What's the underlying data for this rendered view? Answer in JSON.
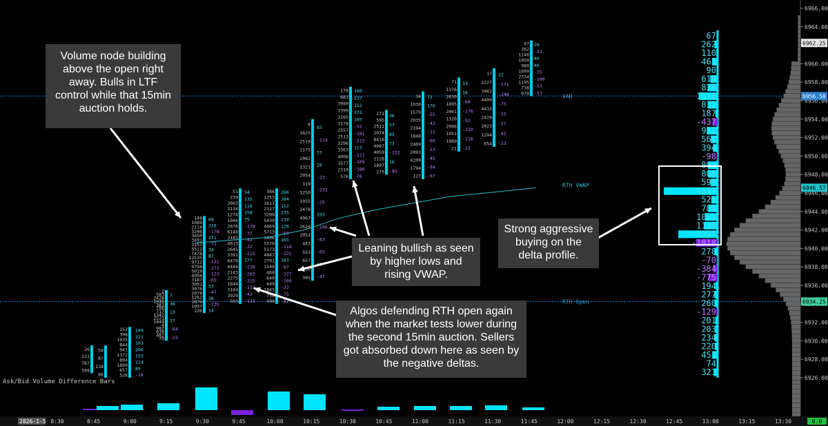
{
  "chart_data": {
    "type": "footprint",
    "instrument_date": "2026-1-5",
    "y_range": [
      6922,
      6966
    ],
    "y_ticks": [
      6926,
      6928,
      6930,
      6932,
      6934,
      6936,
      6938,
      6940,
      6942,
      6944,
      6946,
      6948,
      6950,
      6952,
      6954,
      6956,
      6958,
      6960,
      6962,
      6964,
      6966
    ],
    "x_ticks": [
      "8:30",
      "8:45",
      "9:00",
      "9:15",
      "9:30",
      "9:45",
      "10:00",
      "10:15",
      "10:30",
      "10:45",
      "11:00",
      "11:15",
      "11:30",
      "11:45",
      "12:00",
      "12:15",
      "12:30",
      "12:45",
      "13:00",
      "13:15",
      "13:30"
    ],
    "levels": {
      "vah": {
        "label": "VAH",
        "price": 6956.5,
        "tag": "6956.50"
      },
      "rth_vwap": {
        "label": "RTH VWAP",
        "price": 6946.57,
        "tag": "6946.57"
      },
      "rth_open": {
        "label": "RTH Open",
        "price": 6934.25,
        "tag": "6934.25"
      },
      "last": {
        "price": 6962.25,
        "tag": "6962.25"
      }
    },
    "vwap_points": [
      [
        9.5,
        6940.6
      ],
      [
        9.75,
        6940.9
      ],
      [
        10.0,
        6941.2
      ],
      [
        10.25,
        6942.0
      ],
      [
        10.5,
        6943.3
      ],
      [
        10.75,
        6944.2
      ],
      [
        11.0,
        6944.9
      ],
      [
        11.25,
        6945.6
      ],
      [
        11.5,
        6946.0
      ],
      [
        11.75,
        6946.4
      ],
      [
        11.85,
        6946.57
      ]
    ],
    "bars": [
      {
        "t": "8:30",
        "low": 6926.5,
        "high": 6929.5,
        "cells": [
          "26",
          "221",
          "787",
          "508"
        ]
      },
      {
        "t": "8:45",
        "low": 6926.0,
        "high": 6929.5,
        "cells": [
          "50",
          "87",
          "138",
          "86"
        ]
      },
      {
        "t": "9:00",
        "low": 6926.0,
        "high": 6931.5,
        "cells": [
          "152",
          "398",
          "1035",
          "844",
          "941",
          "1372",
          "894",
          "1890",
          "657",
          "528"
        ]
      },
      {
        "t": "9:00b",
        "low": 6926.0,
        "high": 6931.5,
        "cells": [
          "109",
          "221",
          "193",
          "206",
          "153",
          "114",
          "89",
          "-18"
        ]
      },
      {
        "t": "9:15",
        "low": 6930.0,
        "high": 6935.5,
        "cells": [
          "2",
          "583",
          "2428",
          "1046",
          "381",
          "796",
          "717",
          "1342",
          "2221",
          "1049",
          "4",
          "982",
          "630",
          "482",
          "79"
        ]
      },
      {
        "t": "9:15b",
        "low": 6930.0,
        "high": 6935.5,
        "cells": [
          "7",
          "36",
          "13",
          "27",
          "-84",
          "-23"
        ]
      },
      {
        "t": "9:30",
        "low": 6933.0,
        "high": 6943.5,
        "cells": [
          "148",
          "1089",
          "2114",
          "3246",
          "3650",
          "3491",
          "3153",
          "5512",
          "7478",
          "12535",
          "9712",
          "9798",
          "5019",
          "4994",
          "3187",
          "3091",
          "3076",
          "2078",
          "1262",
          "1876",
          "1097",
          "226"
        ]
      },
      {
        "t": "9:30b",
        "low": 6933.0,
        "high": 6943.5,
        "cells": [
          "68",
          "218",
          "-178",
          "271",
          "-72",
          "34",
          "82",
          "-131",
          "-272",
          "-123",
          "-65",
          "53",
          "-47",
          "36",
          "-235",
          "14"
        ]
      },
      {
        "t": "9:45",
        "low": 6934.0,
        "high": 6946.5,
        "cells": [
          "51",
          "239",
          "2003",
          "3134",
          "1274",
          "1046",
          "2076",
          "6148",
          "2185",
          "4013",
          "2645",
          "3391",
          "6470",
          "4446",
          "2143",
          "2275",
          "1844",
          "3104",
          "3929",
          "593"
        ]
      },
      {
        "t": "9:45b",
        "low": 6934.0,
        "high": 6946.5,
        "cells": [
          "54",
          "135",
          "116",
          "158",
          "75",
          "-178",
          "-37",
          "-42",
          "-32",
          "-215",
          "177",
          "-220",
          "-265",
          "-215",
          "-132",
          "-42",
          "-131"
        ]
      },
      {
        "t": "10:00",
        "low": 6934.0,
        "high": 6946.5,
        "cells": [
          "386",
          "1253",
          "1611",
          "2117",
          "3200",
          "5039",
          "4469",
          "5713",
          "1896",
          "5570",
          "5173",
          "4087",
          "2791",
          "3140",
          "468",
          "649",
          "649",
          "1843",
          "752",
          "408"
        ]
      },
      {
        "t": "10:00b",
        "low": 6934.0,
        "high": 6946.5,
        "cells": [
          "266",
          "284",
          "112",
          "235",
          "134",
          "128",
          "-68",
          "165",
          "-114",
          "-221",
          "163",
          "-87",
          "-227",
          "-166",
          "-32",
          "-75",
          "-82"
        ]
      },
      {
        "t": "10:15",
        "low": 6936.5,
        "high": 6954.0,
        "cells": [
          "8",
          "1625",
          "2519",
          "1175",
          "2082",
          "1321",
          "2054",
          "319",
          "1250",
          "1055",
          "2478",
          "4967",
          "2620",
          "2952",
          "443",
          "553",
          "657",
          "730",
          "305"
        ]
      },
      {
        "t": "10:15b",
        "low": 6936.5,
        "high": 6954.0,
        "cells": [
          "83",
          "-114",
          "37",
          "28",
          "-23",
          "-232",
          "-25",
          "193",
          "-166",
          "-83",
          "-63",
          "18",
          "-47"
        ]
      },
      {
        "t": "10:30",
        "low": 6947.5,
        "high": 6957.5,
        "cells": [
          "176",
          "681",
          "3989",
          "3399",
          "3165",
          "3178",
          "2557",
          "2513",
          "3296",
          "3363",
          "4006",
          "3577",
          "2319",
          "576"
        ]
      },
      {
        "t": "10:30b",
        "low": 6947.5,
        "high": 6957.5,
        "cells": [
          "100",
          "237",
          "152",
          "231",
          "105",
          "-32",
          "-181",
          "-213",
          "117",
          "-121",
          "-109",
          "-186",
          "-76"
        ]
      },
      {
        "t": "10:45",
        "low": 6948.0,
        "high": 6955.0,
        "cells": [
          "271",
          "595",
          "2511",
          "2074",
          "8416",
          "4087",
          "4059",
          "2128",
          "1897",
          "275"
        ]
      },
      {
        "t": "10:45b",
        "low": 6948.0,
        "high": 6955.0,
        "cells": [
          "36",
          "57",
          "85",
          "73",
          "-152",
          "16",
          "-85"
        ]
      },
      {
        "t": "11:00",
        "low": 6947.5,
        "high": 6957.0,
        "cells": [
          "36",
          "1030",
          "1579",
          "2035",
          "2194",
          "1848",
          "2469",
          "2093",
          "4209",
          "1794",
          "127"
        ]
      },
      {
        "t": "11:00b",
        "low": 6947.5,
        "high": 6957.0,
        "cells": [
          "71",
          "176",
          "-55",
          "-43",
          "-11",
          "-60",
          "-23",
          "-45",
          "-94",
          "-97"
        ]
      },
      {
        "t": "11:15",
        "low": 6950.5,
        "high": 6958.5,
        "cells": [
          "71",
          "1376",
          "2630",
          "1895",
          "2461",
          "1320",
          "2906",
          "1951",
          "1980",
          "21"
        ]
      },
      {
        "t": "11:15b",
        "low": 6950.5,
        "high": 6958.5,
        "cells": [
          "33",
          "18",
          "-60",
          "-176",
          "-92",
          "-220",
          "-118",
          "-23"
        ]
      },
      {
        "t": "11:30",
        "low": 6951.0,
        "high": 6959.5,
        "cells": [
          "17",
          "2227",
          "3982",
          "4409",
          "4415",
          "2428",
          "2023",
          "1294",
          "654"
        ]
      },
      {
        "t": "11:30b",
        "low": 6951.0,
        "high": 6959.5,
        "cells": [
          "12",
          "-171",
          "-246",
          "-75",
          "-15",
          "-27",
          "-42",
          "-23"
        ]
      },
      {
        "t": "11:45",
        "low": 6956.5,
        "high": 6962.5,
        "cells": [
          "87",
          "262",
          "1148",
          "1050",
          "980",
          "1699",
          "2334",
          "1195",
          "738",
          "678"
        ]
      },
      {
        "t": "11:45b",
        "low": 6956.5,
        "high": 6962.5,
        "cells": [
          "26",
          "-32",
          "40",
          "46",
          "-75",
          "-100",
          "-53",
          "-53"
        ]
      }
    ],
    "delta_profile": [
      {
        "price": 6964.5,
        "v": "67"
      },
      {
        "price": 6963.0,
        "v": "262"
      },
      {
        "price": 6961.5,
        "v": "110"
      },
      {
        "price": 6960.0,
        "v": "463"
      },
      {
        "price": 6958.5,
        "v": "90"
      },
      {
        "price": 6957.0,
        "v": "618"
      },
      {
        "price": 6955.5,
        "v": "836"
      },
      {
        "price": 6954.0,
        "v": "1578"
      },
      {
        "price": 6952.5,
        "v": "832"
      },
      {
        "price": 6951.0,
        "v": "187"
      },
      {
        "price": 6949.5,
        "v": "-437"
      },
      {
        "price": 6948.0,
        "v": "912"
      },
      {
        "price": 6946.5,
        "v": "568"
      },
      {
        "price": 6945.0,
        "v": "394"
      },
      {
        "price": 6943.5,
        "v": "-98"
      },
      {
        "price": 6942.0,
        "v": "802"
      },
      {
        "price": 6940.5,
        "v": "805"
      },
      {
        "price": 6939.0,
        "v": "599"
      },
      {
        "price": 6937.5,
        "v": "4517"
      },
      {
        "price": 6936.0,
        "v": "525"
      },
      {
        "price": 6934.5,
        "v": "783"
      },
      {
        "price": 6933.0,
        "v": "1061"
      },
      {
        "price": 6931.5,
        "v": "1139"
      },
      {
        "price": 6930.0,
        "v": "3297"
      },
      {
        "price": 6928.5,
        "v": "-1818"
      },
      {
        "price": 6927.0,
        "v": "278"
      },
      {
        "price": 6925.5,
        "v": "-70"
      },
      {
        "price": 6924.0,
        "v": "-384"
      },
      {
        "price": 6922.5,
        "v": "-775"
      },
      {
        "price": 6921.0,
        "v": "194"
      },
      {
        "price": 6919.5,
        "v": "277"
      },
      {
        "price": 6918.0,
        "v": "260"
      },
      {
        "price": 6916.5,
        "v": "-129"
      },
      {
        "price": 6915.0,
        "v": "201"
      },
      {
        "price": 6913.5,
        "v": "203"
      },
      {
        "price": 6912.0,
        "v": "234"
      },
      {
        "price": 6910.5,
        "v": "220"
      },
      {
        "price": 6909.0,
        "v": "453"
      },
      {
        "price": 6907.5,
        "v": "74"
      },
      {
        "price": 6906.0,
        "v": "321"
      }
    ],
    "volume_profile_peak_price": 6940.5,
    "volume_bars_title": "Ask/Bid Volume Difference Bars",
    "volume_bars_axis_tick": "4000",
    "volume_bars": [
      {
        "t": "8:30",
        "v": 200,
        "c": "#7a22e0"
      },
      {
        "t": "8:45",
        "v": 600,
        "c": "#00e5ff"
      },
      {
        "t": "9:00",
        "v": 800,
        "c": "#00e5ff"
      },
      {
        "t": "9:15",
        "v": 1000,
        "c": "#00e5ff"
      },
      {
        "t": "9:30",
        "v": 3300,
        "c": "#00e5ff"
      },
      {
        "t": "9:45",
        "v": -700,
        "c": "#7a22e0"
      },
      {
        "t": "10:00",
        "v": 2700,
        "c": "#00e5ff"
      },
      {
        "t": "10:15",
        "v": 2300,
        "c": "#00e5ff"
      },
      {
        "t": "10:30",
        "v": 100,
        "c": "#7a22e0"
      },
      {
        "t": "10:45",
        "v": 500,
        "c": "#00e5ff"
      },
      {
        "t": "11:00",
        "v": 600,
        "c": "#00e5ff"
      },
      {
        "t": "11:15",
        "v": 600,
        "c": "#00e5ff"
      },
      {
        "t": "11:30",
        "v": 700,
        "c": "#00e5ff"
      },
      {
        "t": "11:45",
        "v": 400,
        "c": "#00e5ff"
      }
    ],
    "right_bottom_tag": "0.0"
  },
  "annotations": {
    "node_note": "Volume node building above the open right away. Bulls in LTF control while that 15min auction holds.",
    "leaning_note": "Leaning bullish as seen by higher lows and rising VWAP.",
    "algos_note": "Algos defending RTH open again when the market tests lower during the second 15min auction. Sellers got absorbed down here as seen by the negative deltas.",
    "delta_note": "Strong aggressive buying on the delta profile."
  },
  "colors": {
    "ask": "#00e5ff",
    "bid": "#7a22e0",
    "profile": "#666666",
    "vwap": "#20c0c8",
    "level": "#2b7fd0",
    "text": "#c8c8c8"
  }
}
